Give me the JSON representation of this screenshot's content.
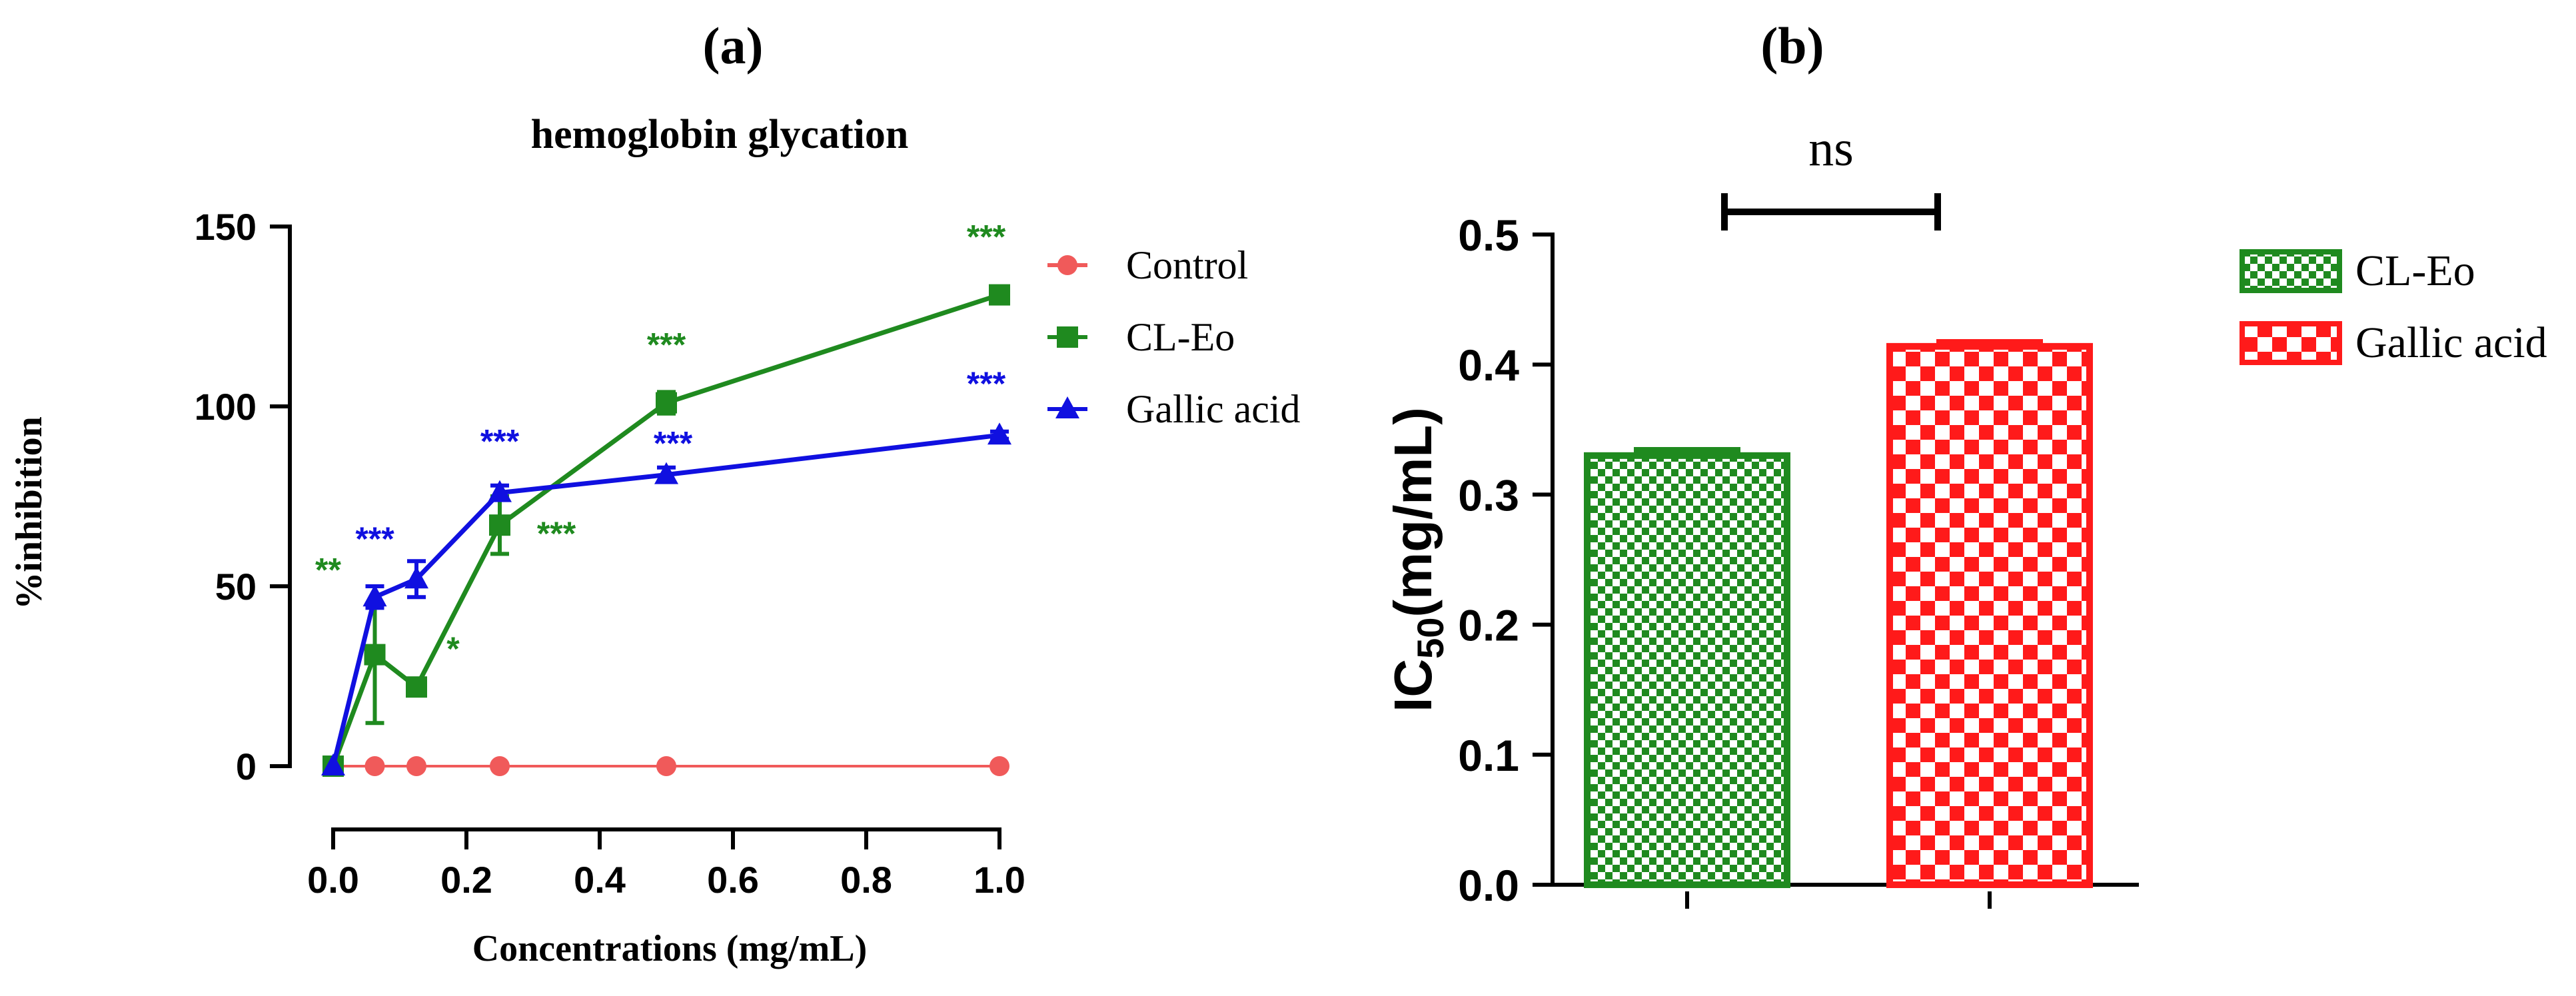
{
  "colors": {
    "control": "#f05a5a",
    "cl_eo": "#1f8a1f",
    "gallic": "#1010e0",
    "bar_red": "#ff1a1a",
    "axis": "#000000"
  },
  "chart_data": [
    {
      "panel_label": "(a)",
      "type": "line",
      "title": "hemoglobin glycation",
      "xlabel": "Concentrations (mg/mL)",
      "ylabel": "%inhibition",
      "xlim": [
        0,
        1
      ],
      "ylim": [
        0,
        150
      ],
      "xticks": [
        "0.0",
        "0.2",
        "0.4",
        "0.6",
        "0.8",
        "1.0"
      ],
      "yticks": [
        "0",
        "50",
        "100",
        "150"
      ],
      "legend_position": "right",
      "series": [
        {
          "name": "Control",
          "marker": "circle",
          "color_key": "control",
          "x": [
            0,
            0.0625,
            0.125,
            0.25,
            0.5,
            1.0
          ],
          "y": [
            0,
            0,
            0,
            0,
            0,
            0
          ],
          "err": [
            0,
            0,
            0,
            0,
            0,
            0
          ],
          "sig": [
            "",
            "",
            "",
            "",
            "",
            ""
          ]
        },
        {
          "name": "CL-Eo",
          "marker": "square",
          "color_key": "cl_eo",
          "x": [
            0,
            0.0625,
            0.125,
            0.25,
            0.5,
            1.0
          ],
          "y": [
            0,
            31,
            22,
            67,
            101,
            131
          ],
          "err": [
            0,
            19,
            2,
            8,
            3,
            2
          ],
          "sig": [
            "",
            "**",
            "*",
            "***",
            "***",
            "***"
          ]
        },
        {
          "name": "Gallic acid",
          "marker": "triangle",
          "color_key": "gallic",
          "x": [
            0,
            0.0625,
            0.125,
            0.25,
            0.5,
            1.0
          ],
          "y": [
            0,
            47,
            52,
            76,
            81,
            92
          ],
          "err": [
            0,
            3,
            5,
            2,
            2,
            1
          ],
          "sig": [
            "",
            "***",
            "",
            "***",
            "***",
            "***"
          ]
        }
      ]
    },
    {
      "panel_label": "(b)",
      "type": "bar",
      "ylabel_main": "IC",
      "ylabel_sub": "50",
      "ylabel_rest": "(mg/mL)",
      "ylim": [
        0,
        0.5
      ],
      "yticks": [
        "0.0",
        "0.1",
        "0.2",
        "0.3",
        "0.4",
        "0.5"
      ],
      "categories": [
        "CL-Eo",
        "Gallic acid"
      ],
      "values": [
        0.33,
        0.414
      ],
      "err": [
        0.004,
        0.003
      ],
      "significance": "ns",
      "legend_position": "top-right",
      "series": [
        {
          "name": "CL-Eo",
          "color_key": "cl_eo"
        },
        {
          "name": "Gallic acid",
          "color_key": "bar_red"
        }
      ]
    }
  ]
}
